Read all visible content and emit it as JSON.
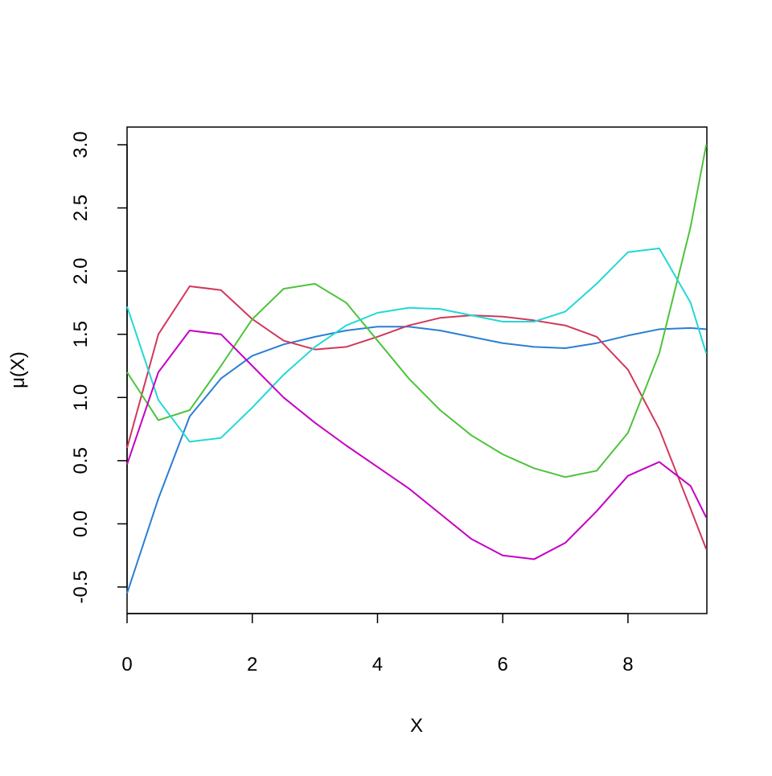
{
  "chart_data": {
    "type": "line",
    "xlabel": "X",
    "ylabel": "μ(X)",
    "x": [
      0,
      0.5,
      1,
      1.5,
      2,
      2.5,
      3,
      3.5,
      4,
      4.5,
      5,
      5.5,
      6,
      6.5,
      7,
      7.5,
      8,
      8.5,
      9,
      9.25
    ],
    "series": [
      {
        "color": "#2a7fd4",
        "values": [
          -0.55,
          0.2,
          0.85,
          1.15,
          1.33,
          1.42,
          1.48,
          1.53,
          1.56,
          1.56,
          1.53,
          1.48,
          1.43,
          1.4,
          1.39,
          1.43,
          1.49,
          1.54,
          1.55,
          1.54
        ]
      },
      {
        "color": "#d0385a",
        "values": [
          0.6,
          1.5,
          1.88,
          1.85,
          1.62,
          1.45,
          1.38,
          1.4,
          1.48,
          1.57,
          1.63,
          1.65,
          1.64,
          1.61,
          1.57,
          1.48,
          1.22,
          0.75,
          0.12,
          -0.2
        ]
      },
      {
        "color": "#4cc43a",
        "values": [
          1.2,
          0.82,
          0.9,
          1.25,
          1.62,
          1.86,
          1.9,
          1.75,
          1.45,
          1.15,
          0.9,
          0.7,
          0.55,
          0.44,
          0.37,
          0.42,
          0.72,
          1.35,
          2.35,
          3.0
        ]
      },
      {
        "color": "#22d8d8",
        "values": [
          1.72,
          0.98,
          0.65,
          0.68,
          0.92,
          1.18,
          1.4,
          1.57,
          1.67,
          1.71,
          1.7,
          1.65,
          1.6,
          1.6,
          1.68,
          1.9,
          2.15,
          2.18,
          1.75,
          1.35
        ]
      },
      {
        "color": "#c400c4",
        "values": [
          0.47,
          1.2,
          1.53,
          1.5,
          1.25,
          1.0,
          0.8,
          0.62,
          0.45,
          0.28,
          0.08,
          -0.12,
          -0.25,
          -0.28,
          -0.15,
          0.1,
          0.38,
          0.49,
          0.3,
          0.05
        ]
      }
    ],
    "xlim": [
      0,
      9.26
    ],
    "xticks": [
      0,
      2,
      4,
      6,
      8
    ],
    "ylim": [
      -0.71,
      3.14
    ],
    "yticks": [
      -0.5,
      {
        "value": 0,
        "label": "0.0"
      },
      0.5,
      {
        "value": 1,
        "label": "1.0"
      },
      1.5,
      {
        "value": 2,
        "label": "2.0"
      },
      2.5,
      {
        "value": 3,
        "label": "3.0"
      }
    ]
  }
}
